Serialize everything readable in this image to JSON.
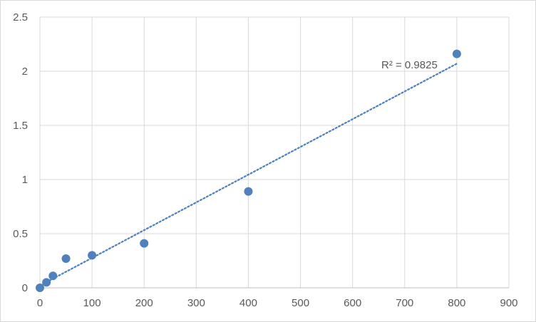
{
  "chart_data": {
    "type": "scatter",
    "title": "",
    "xlabel": "",
    "ylabel": "",
    "xlim": [
      0,
      900
    ],
    "ylim": [
      0,
      2.5
    ],
    "x_ticks": [
      "0",
      "100",
      "200",
      "300",
      "400",
      "500",
      "600",
      "700",
      "800",
      "900"
    ],
    "y_ticks": [
      "0",
      "0.5",
      "1",
      "1.5",
      "2",
      "2.5"
    ],
    "grid": true,
    "legend": "none",
    "series": [
      {
        "x": [
          0,
          12.5,
          25,
          50,
          100,
          200,
          400,
          800
        ],
        "y": [
          0.0,
          0.05,
          0.11,
          0.27,
          0.3,
          0.41,
          0.89,
          2.16
        ],
        "color": "#4f81bd"
      }
    ],
    "trendline": {
      "type": "linear",
      "x": [
        0,
        800
      ],
      "y": [
        0.02,
        2.07
      ],
      "style": "dotted",
      "color": "#4f81bd"
    },
    "annotation": {
      "text": "R² = 0.9825"
    }
  }
}
